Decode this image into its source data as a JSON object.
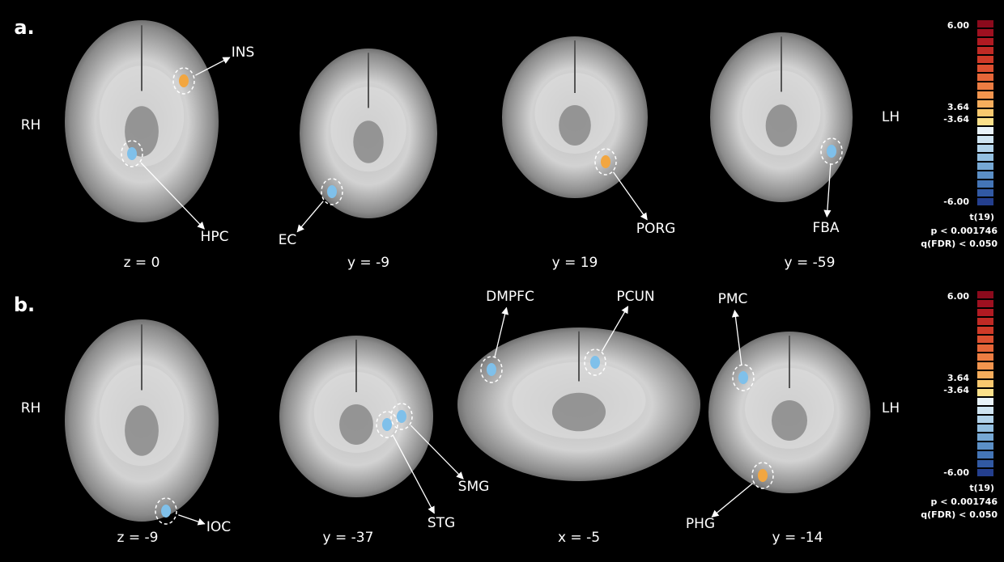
{
  "panels": [
    {
      "label": "a.",
      "left": "RH",
      "right": "LH",
      "slices": [
        {
          "coordinate": "z = 0",
          "regions": [
            "INS",
            "HPC"
          ]
        },
        {
          "coordinate": "y = -9",
          "regions": [
            "EC"
          ]
        },
        {
          "coordinate": "y = 19",
          "regions": [
            "PORG"
          ]
        },
        {
          "coordinate": "y = -59",
          "regions": [
            "FBA"
          ]
        }
      ],
      "colorbar": {
        "max": "6.00",
        "upper": "3.64",
        "lower": "-3.64",
        "min": "-6.00",
        "stat": "t(19)",
        "p": "p < 0.001746",
        "q": "q(FDR) < 0.050"
      }
    },
    {
      "label": "b.",
      "left": "RH",
      "right": "LH",
      "slices": [
        {
          "coordinate": "z = -9",
          "regions": [
            "IOC"
          ]
        },
        {
          "coordinate": "y = -37",
          "regions": [
            "STG",
            "SMG"
          ]
        },
        {
          "coordinate": "x = -5",
          "regions": [
            "DMPFC",
            "PCUN"
          ]
        },
        {
          "coordinate": "y = -14",
          "regions": [
            "PMC",
            "PHG"
          ]
        }
      ],
      "colorbar": {
        "max": "6.00",
        "upper": "3.64",
        "lower": "-3.64",
        "min": "-6.00",
        "stat": "t(19)",
        "p": "p < 0.001746",
        "q": "q(FDR) < 0.050"
      }
    }
  ]
}
